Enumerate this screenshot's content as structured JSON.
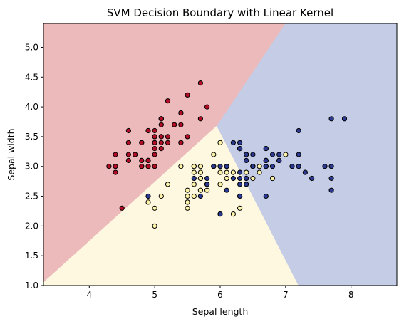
{
  "chart_data": {
    "type": "scatter",
    "title": "SVM Decision Boundary with Linear Kernel",
    "xlabel": "Sepal length",
    "ylabel": "Sepal width",
    "xlim": [
      3.3,
      8.7
    ],
    "ylim": [
      1.0,
      5.4
    ],
    "x_ticks": [
      4,
      5,
      6,
      7,
      8
    ],
    "y_ticks": [
      1.0,
      1.5,
      2.0,
      2.5,
      3.0,
      3.5,
      4.0,
      4.5,
      5.0
    ],
    "x_tick_labels": [
      "4",
      "5",
      "6",
      "7",
      "8"
    ],
    "y_tick_labels": [
      "1.0",
      "1.5",
      "2.0",
      "2.5",
      "3.0",
      "3.5",
      "4.0",
      "4.5",
      "5.0"
    ],
    "grid": false,
    "decision_regions": [
      {
        "class": "red",
        "color": "#ecbabb",
        "polygon": [
          [
            3.3,
            1.05
          ],
          [
            5.95,
            3.68
          ],
          [
            7.0,
            5.4
          ],
          [
            3.3,
            5.4
          ]
        ]
      },
      {
        "class": "yellow",
        "color": "#fef8e1",
        "polygon": [
          [
            3.3,
            1.0
          ],
          [
            7.2,
            1.0
          ],
          [
            5.95,
            3.68
          ],
          [
            3.3,
            1.05
          ]
        ]
      },
      {
        "class": "blue",
        "color": "#c4cce6",
        "polygon": [
          [
            5.95,
            3.68
          ],
          [
            7.2,
            1.0
          ],
          [
            8.7,
            1.0
          ],
          [
            8.7,
            5.4
          ],
          [
            7.0,
            5.4
          ]
        ]
      }
    ],
    "series": [
      {
        "color": "#b20d24",
        "points": [
          [
            5.1,
            3.5
          ],
          [
            4.9,
            3.0
          ],
          [
            4.7,
            3.2
          ],
          [
            4.6,
            3.1
          ],
          [
            5.0,
            3.6
          ],
          [
            5.4,
            3.9
          ],
          [
            4.6,
            3.4
          ],
          [
            5.0,
            3.4
          ],
          [
            4.4,
            2.9
          ],
          [
            4.9,
            3.1
          ],
          [
            5.4,
            3.7
          ],
          [
            4.8,
            3.4
          ],
          [
            4.8,
            3.0
          ],
          [
            4.3,
            3.0
          ],
          [
            5.8,
            4.0
          ],
          [
            5.7,
            4.4
          ],
          [
            5.4,
            3.9
          ],
          [
            5.1,
            3.5
          ],
          [
            5.7,
            3.8
          ],
          [
            5.1,
            3.8
          ],
          [
            5.4,
            3.4
          ],
          [
            5.1,
            3.7
          ],
          [
            4.6,
            3.6
          ],
          [
            5.1,
            3.3
          ],
          [
            4.8,
            3.4
          ],
          [
            5.0,
            3.0
          ],
          [
            5.0,
            3.4
          ],
          [
            5.2,
            3.5
          ],
          [
            5.2,
            3.4
          ],
          [
            4.7,
            3.2
          ],
          [
            4.8,
            3.1
          ],
          [
            5.4,
            3.4
          ],
          [
            5.2,
            4.1
          ],
          [
            5.5,
            4.2
          ],
          [
            4.9,
            3.1
          ],
          [
            5.0,
            3.2
          ],
          [
            5.5,
            3.5
          ],
          [
            4.9,
            3.6
          ],
          [
            4.4,
            3.0
          ],
          [
            5.1,
            3.4
          ],
          [
            5.0,
            3.5
          ],
          [
            4.5,
            2.3
          ],
          [
            4.4,
            3.2
          ],
          [
            5.0,
            3.5
          ],
          [
            5.1,
            3.8
          ],
          [
            4.8,
            3.0
          ],
          [
            5.1,
            3.8
          ],
          [
            4.6,
            3.2
          ],
          [
            5.3,
            3.7
          ],
          [
            5.0,
            3.3
          ]
        ]
      },
      {
        "color": "#fcf3a9",
        "points": [
          [
            7.0,
            3.2
          ],
          [
            6.4,
            3.2
          ],
          [
            6.9,
            3.1
          ],
          [
            5.5,
            2.3
          ],
          [
            6.5,
            2.8
          ],
          [
            5.7,
            2.8
          ],
          [
            6.3,
            3.3
          ],
          [
            4.9,
            2.4
          ],
          [
            6.6,
            2.9
          ],
          [
            5.2,
            2.7
          ],
          [
            5.0,
            2.0
          ],
          [
            5.9,
            3.0
          ],
          [
            6.0,
            2.2
          ],
          [
            6.1,
            2.9
          ],
          [
            5.6,
            2.9
          ],
          [
            6.7,
            3.1
          ],
          [
            5.6,
            3.0
          ],
          [
            5.8,
            2.7
          ],
          [
            6.2,
            2.2
          ],
          [
            5.6,
            2.5
          ],
          [
            5.9,
            3.2
          ],
          [
            6.1,
            2.8
          ],
          [
            6.3,
            2.5
          ],
          [
            6.1,
            2.8
          ],
          [
            6.4,
            2.9
          ],
          [
            6.6,
            3.0
          ],
          [
            6.8,
            2.8
          ],
          [
            6.7,
            3.0
          ],
          [
            6.0,
            2.9
          ],
          [
            5.7,
            2.6
          ],
          [
            5.5,
            2.4
          ],
          [
            5.5,
            2.4
          ],
          [
            5.8,
            2.7
          ],
          [
            6.0,
            2.7
          ],
          [
            5.4,
            3.0
          ],
          [
            6.0,
            3.4
          ],
          [
            6.7,
            3.1
          ],
          [
            6.3,
            2.3
          ],
          [
            5.6,
            3.0
          ],
          [
            5.5,
            2.5
          ],
          [
            5.5,
            2.6
          ],
          [
            6.1,
            3.0
          ],
          [
            5.8,
            2.6
          ],
          [
            5.0,
            2.3
          ],
          [
            5.6,
            2.7
          ],
          [
            5.7,
            3.0
          ],
          [
            5.7,
            2.9
          ],
          [
            6.2,
            2.9
          ],
          [
            5.1,
            2.5
          ],
          [
            5.7,
            2.8
          ]
        ]
      },
      {
        "color": "#2b3990",
        "points": [
          [
            6.3,
            3.3
          ],
          [
            5.8,
            2.7
          ],
          [
            7.1,
            3.0
          ],
          [
            6.3,
            2.9
          ],
          [
            6.5,
            3.0
          ],
          [
            7.6,
            3.0
          ],
          [
            4.9,
            2.5
          ],
          [
            7.3,
            2.9
          ],
          [
            6.7,
            2.5
          ],
          [
            7.2,
            3.6
          ],
          [
            6.5,
            3.2
          ],
          [
            6.4,
            2.7
          ],
          [
            6.8,
            3.0
          ],
          [
            5.7,
            2.5
          ],
          [
            5.8,
            2.8
          ],
          [
            6.4,
            3.2
          ],
          [
            6.5,
            3.0
          ],
          [
            7.7,
            3.8
          ],
          [
            7.7,
            2.6
          ],
          [
            6.0,
            2.2
          ],
          [
            6.9,
            3.2
          ],
          [
            5.6,
            2.8
          ],
          [
            7.7,
            2.8
          ],
          [
            6.3,
            2.7
          ],
          [
            6.7,
            3.3
          ],
          [
            7.2,
            3.2
          ],
          [
            6.2,
            2.8
          ],
          [
            6.1,
            3.0
          ],
          [
            6.4,
            2.8
          ],
          [
            7.2,
            3.0
          ],
          [
            7.4,
            2.8
          ],
          [
            7.9,
            3.8
          ],
          [
            6.4,
            2.8
          ],
          [
            6.3,
            2.8
          ],
          [
            6.1,
            2.6
          ],
          [
            7.7,
            3.0
          ],
          [
            6.3,
            3.4
          ],
          [
            6.4,
            3.1
          ],
          [
            6.0,
            3.0
          ],
          [
            6.9,
            3.1
          ],
          [
            6.7,
            3.1
          ],
          [
            6.9,
            3.1
          ],
          [
            5.8,
            2.7
          ],
          [
            6.8,
            3.2
          ],
          [
            6.7,
            3.3
          ],
          [
            6.7,
            3.0
          ],
          [
            6.3,
            2.5
          ],
          [
            6.5,
            3.0
          ],
          [
            6.2,
            3.4
          ],
          [
            5.9,
            3.0
          ]
        ]
      }
    ]
  }
}
